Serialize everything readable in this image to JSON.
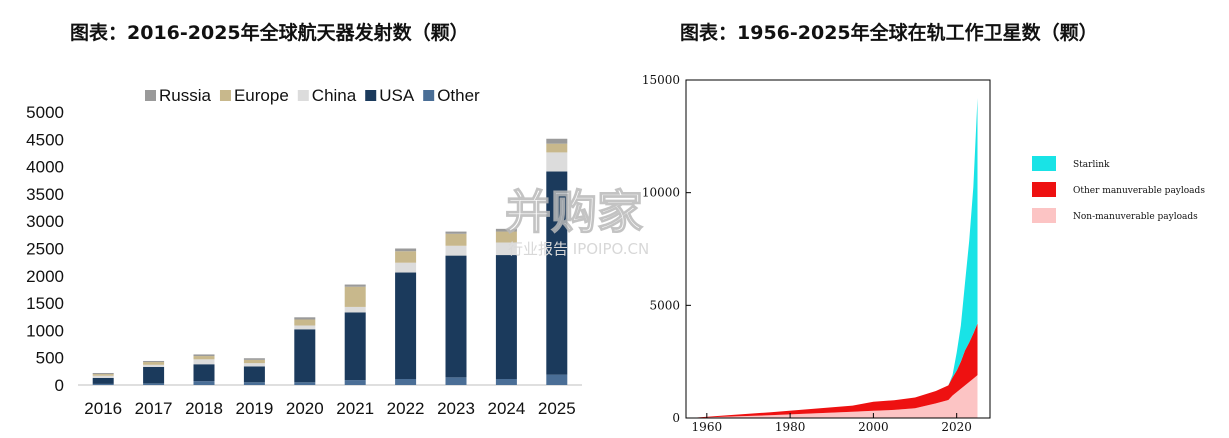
{
  "titles": {
    "left": "图表：2016-2025年全球航天器发射数（颗）",
    "right": "图表：1956-2025年全球在轨工作卫星数（颗）"
  },
  "watermark": {
    "main": "并购家",
    "sub": "行业报告 IPOIPO.CN"
  },
  "colors": {
    "Russia": "#9a9a9a",
    "Europe": "#c8b88c",
    "China": "#dcdcdc",
    "USA": "#1b3a5c",
    "Other": "#4a6e96",
    "Starlink": "#19e3e6",
    "Other manuverable payloads": "#ee1111",
    "Non-manuverable payloads": "#fcc4c4"
  },
  "chart_data": [
    {
      "type": "bar",
      "stacked": true,
      "title": "图表：2016-2025年全球航天器发射数（颗）",
      "categories": [
        "2016",
        "2017",
        "2018",
        "2019",
        "2020",
        "2021",
        "2022",
        "2023",
        "2024",
        "2025"
      ],
      "series": [
        {
          "name": "Other",
          "values": [
            20,
            30,
            70,
            50,
            50,
            90,
            110,
            140,
            110,
            190
          ]
        },
        {
          "name": "USA",
          "values": [
            110,
            300,
            310,
            290,
            970,
            1240,
            1950,
            2230,
            2270,
            3720
          ]
        },
        {
          "name": "China",
          "values": [
            40,
            40,
            90,
            60,
            70,
            100,
            180,
            180,
            230,
            350
          ]
        },
        {
          "name": "Europe",
          "values": [
            30,
            50,
            60,
            60,
            110,
            370,
            210,
            220,
            200,
            160
          ]
        },
        {
          "name": "Russia",
          "values": [
            20,
            20,
            30,
            30,
            40,
            40,
            50,
            40,
            50,
            90
          ]
        }
      ],
      "ylim": [
        0,
        5000
      ],
      "yticks": [
        "0",
        "500",
        "1000",
        "1500",
        "2000",
        "2500",
        "3000",
        "3500",
        "4000",
        "4500",
        "5000"
      ],
      "legend": "top",
      "grid": false
    },
    {
      "type": "area",
      "stacked": true,
      "title": "图表：1956-2025年全球在轨工作卫星数（颗）",
      "x": [
        1956,
        1965,
        1975,
        1985,
        1995,
        2000,
        2005,
        2010,
        2015,
        2018,
        2019,
        2020,
        2021,
        2022,
        2023,
        2024,
        2025
      ],
      "series": [
        {
          "name": "Non-manuverable payloads",
          "values": [
            0,
            60,
            120,
            200,
            280,
            320,
            360,
            430,
            650,
            800,
            1000,
            1150,
            1300,
            1450,
            1600,
            1750,
            1900
          ]
        },
        {
          "name": "Other manuverable payloads",
          "values": [
            0,
            60,
            130,
            200,
            270,
            400,
            430,
            480,
            550,
            650,
            800,
            950,
            1200,
            1550,
            1750,
            2000,
            2300
          ]
        },
        {
          "name": "Starlink",
          "values": [
            0,
            0,
            0,
            0,
            0,
            0,
            0,
            0,
            0,
            0,
            100,
            800,
            1600,
            3000,
            4500,
            6500,
            10000
          ]
        }
      ],
      "xlim": [
        1955,
        2028
      ],
      "ylim": [
        0,
        15000
      ],
      "xticks": [
        "1960",
        "1980",
        "2000",
        "2020"
      ],
      "yticks": [
        "0",
        "5000",
        "10000",
        "15000"
      ],
      "legend": "right",
      "grid": false
    }
  ]
}
